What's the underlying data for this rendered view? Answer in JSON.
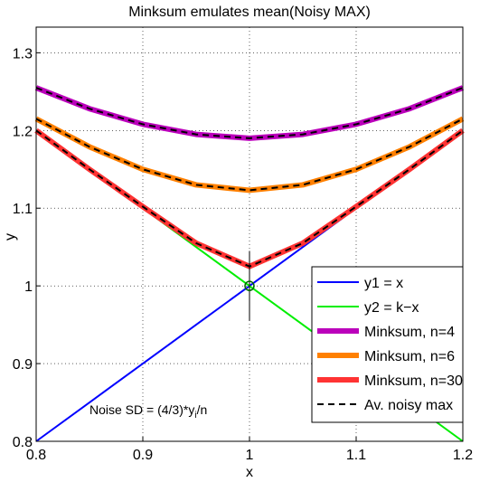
{
  "chart_data": {
    "type": "line",
    "title": "Minksum emulates mean(Noisy MAX)",
    "x_label": "x",
    "y_label": "y",
    "x": [
      0.8,
      0.85,
      0.9,
      0.95,
      1.0,
      1.05,
      1.1,
      1.15,
      1.2
    ],
    "series": [
      {
        "name": "y1 = x",
        "color": "#0000ff",
        "width": 2,
        "values": [
          0.8,
          0.85,
          0.9,
          0.95,
          1.0,
          1.05,
          1.1,
          1.15,
          1.2
        ]
      },
      {
        "name": "y2 = k−x",
        "color": "#00ee00",
        "width": 2,
        "values": [
          1.2,
          1.15,
          1.1,
          1.05,
          1.0,
          0.95,
          0.9,
          0.85,
          0.8
        ]
      },
      {
        "name": "Minksum, n=4",
        "color": "#bb00bb",
        "width": 6,
        "values": [
          1.255,
          1.228,
          1.208,
          1.195,
          1.19,
          1.195,
          1.208,
          1.228,
          1.255
        ]
      },
      {
        "name": "Minksum, n=6",
        "color": "#ff8000",
        "width": 6,
        "values": [
          1.215,
          1.179,
          1.15,
          1.13,
          1.123,
          1.13,
          1.15,
          1.179,
          1.215
        ]
      },
      {
        "name": "Minksum, n=30",
        "color": "#ff3333",
        "width": 6,
        "values": [
          1.2,
          1.15,
          1.102,
          1.055,
          1.025,
          1.055,
          1.102,
          1.15,
          1.2
        ]
      },
      {
        "name": "Av. noisy max",
        "color": "#000000",
        "width": 2,
        "dash": true,
        "curves": [
          [
            1.255,
            1.228,
            1.208,
            1.195,
            1.19,
            1.195,
            1.208,
            1.228,
            1.255
          ],
          [
            1.215,
            1.179,
            1.15,
            1.13,
            1.123,
            1.13,
            1.15,
            1.179,
            1.215
          ],
          [
            1.2,
            1.15,
            1.102,
            1.055,
            1.025,
            1.055,
            1.102,
            1.15,
            1.2
          ]
        ]
      }
    ],
    "marker": {
      "x": 1,
      "y": 1,
      "error": 0.045,
      "color": "#006600"
    },
    "annotation": {
      "x": 0.85,
      "y": 0.835,
      "parts": [
        "Noise SD = (4/3)*y",
        "i",
        "/n"
      ]
    },
    "xlim": [
      0.8,
      1.2
    ],
    "ylim": [
      0.8,
      1.333
    ],
    "xticks": [
      0.8,
      0.9,
      1,
      1.1,
      1.2
    ],
    "yticks": [
      0.8,
      0.9,
      1,
      1.1,
      1.2,
      1.3
    ],
    "grid": true,
    "legend": "lower right"
  }
}
